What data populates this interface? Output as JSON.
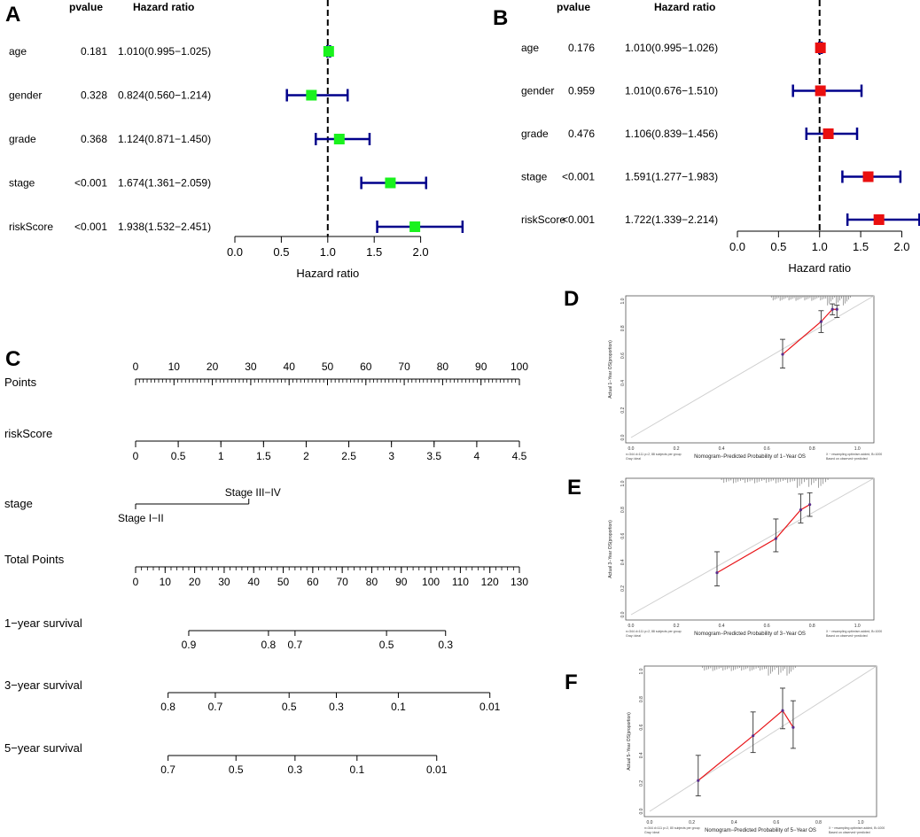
{
  "panel_labels": {
    "A": "A",
    "B": "B",
    "C": "C",
    "D": "D",
    "E": "E",
    "F": "F"
  },
  "colors": {
    "green": "#19f21d",
    "red": "#ea0f0f",
    "navy": "#00008b",
    "cal_line": "#e8161a",
    "ref_line": "#cfcfcf",
    "point": "#5a2d8c"
  },
  "chart_data": [
    {
      "id": "A",
      "type": "forest",
      "header_pvalue": "pvalue",
      "header_hr": "Hazard ratio",
      "xlabel": "Hazard ratio",
      "xlim": [
        0,
        2.5
      ],
      "ticks": [
        "0.0",
        "0.5",
        "1.0",
        "1.5",
        "2.0"
      ],
      "reference": 1.0,
      "rows": [
        {
          "name": "age",
          "pvalue": "0.181",
          "hr_text": "1.010(0.995−1.025)",
          "hr": 1.01,
          "low": 0.995,
          "high": 1.025
        },
        {
          "name": "gender",
          "pvalue": "0.328",
          "hr_text": "0.824(0.560−1.214)",
          "hr": 0.824,
          "low": 0.56,
          "high": 1.214
        },
        {
          "name": "grade",
          "pvalue": "0.368",
          "hr_text": "1.124(0.871−1.450)",
          "hr": 1.124,
          "low": 0.871,
          "high": 1.45
        },
        {
          "name": "stage",
          "pvalue": "<0.001",
          "hr_text": "1.674(1.361−2.059)",
          "hr": 1.674,
          "low": 1.361,
          "high": 2.059
        },
        {
          "name": "riskScore",
          "pvalue": "<0.001",
          "hr_text": "1.938(1.532−2.451)",
          "hr": 1.938,
          "low": 1.532,
          "high": 2.451
        }
      ]
    },
    {
      "id": "B",
      "type": "forest",
      "header_pvalue": "pvalue",
      "header_hr": "Hazard ratio",
      "xlabel": "Hazard ratio",
      "xlim": [
        0,
        2.2
      ],
      "ticks": [
        "0.0",
        "0.5",
        "1.0",
        "1.5",
        "2.0"
      ],
      "reference": 1.0,
      "rows": [
        {
          "name": "age",
          "pvalue": "0.176",
          "hr_text": "1.010(0.995−1.026)",
          "hr": 1.01,
          "low": 0.995,
          "high": 1.026
        },
        {
          "name": "gender",
          "pvalue": "0.959",
          "hr_text": "1.010(0.676−1.510)",
          "hr": 1.01,
          "low": 0.676,
          "high": 1.51
        },
        {
          "name": "grade",
          "pvalue": "0.476",
          "hr_text": "1.106(0.839−1.456)",
          "hr": 1.106,
          "low": 0.839,
          "high": 1.456
        },
        {
          "name": "stage",
          "pvalue": "<0.001",
          "hr_text": "1.591(1.277−1.983)",
          "hr": 1.591,
          "low": 1.277,
          "high": 1.983
        },
        {
          "name": "riskScore",
          "pvalue": "<0.001",
          "hr_text": "1.722(1.339−2.214)",
          "hr": 1.722,
          "low": 1.339,
          "high": 2.214
        }
      ]
    },
    {
      "id": "C",
      "type": "nomogram",
      "scales": [
        {
          "name": "Points",
          "min": 0,
          "max": 100,
          "labels": [
            0,
            10,
            20,
            30,
            40,
            50,
            60,
            70,
            80,
            90,
            100
          ],
          "label_pos": [
            0,
            10,
            20,
            30,
            40,
            50,
            60,
            70,
            80,
            90,
            100
          ],
          "minor": 1,
          "label_side": "top"
        },
        {
          "name": "riskScore",
          "min": 0,
          "max": 4.5,
          "labels": [
            "0",
            "0.5",
            "1",
            "1.5",
            "2",
            "2.5",
            "3",
            "3.5",
            "4",
            "4.5"
          ],
          "label_pos": [
            0,
            0.5,
            1,
            1.5,
            2,
            2.5,
            3,
            3.5,
            4,
            4.5
          ],
          "minor": 0.5,
          "label_side": "bottom"
        },
        {
          "name": "stage",
          "type": "categorical",
          "categories": [
            "Stage I−II",
            "Stage III−IV"
          ],
          "points": [
            0,
            29.5
          ]
        },
        {
          "name": "Total Points",
          "min": 0,
          "max": 130,
          "labels": [
            0,
            10,
            20,
            30,
            40,
            50,
            60,
            70,
            80,
            90,
            100,
            110,
            120,
            130
          ],
          "label_pos": [
            0,
            10,
            20,
            30,
            40,
            50,
            60,
            70,
            80,
            90,
            100,
            110,
            120,
            130
          ],
          "minor": 2,
          "label_side": "bottom"
        },
        {
          "name": "1−year survival",
          "type": "survival",
          "labels": [
            "0.9",
            "0.8",
            "0.7",
            "0.5",
            "0.3"
          ],
          "total_points": [
            18,
            45,
            54,
            85,
            105
          ]
        },
        {
          "name": "3−year survival",
          "type": "survival",
          "labels": [
            "0.8",
            "0.7",
            "0.5",
            "0.3",
            "0.1",
            "0.01"
          ],
          "total_points": [
            11,
            27,
            52,
            68,
            89,
            120
          ]
        },
        {
          "name": "5−year survival",
          "type": "survival",
          "labels": [
            "0.7",
            "0.5",
            "0.3",
            "0.1",
            "0.01"
          ],
          "total_points": [
            11,
            34,
            54,
            75,
            102
          ]
        }
      ]
    },
    {
      "id": "D",
      "type": "calibration",
      "xlabel": "Nomogram−Predicted Probability of 1−Year OS",
      "ylabel": "Actual 1−Year OS(proportion)",
      "xlim": [
        0,
        1.05
      ],
      "ylim": [
        0,
        1.0
      ],
      "xticks": [
        "0.0",
        "0.2",
        "0.4",
        "0.6",
        "0.8",
        "1.0"
      ],
      "yticks": [
        "0.0",
        "0.2",
        "0.4",
        "0.6",
        "0.8",
        "1.0"
      ],
      "note_left": "n=344 d=111 p=2, 88 subjects per group\nGray: ideal",
      "note_right": "X − resampling optimism added, B=1000\nBased on observed−predicted",
      "points": [
        {
          "x": 0.67,
          "y": 0.61,
          "low": 0.51,
          "high": 0.72
        },
        {
          "x": 0.84,
          "y": 0.85,
          "low": 0.77,
          "high": 0.93
        },
        {
          "x": 0.89,
          "y": 0.94,
          "low": 0.9,
          "high": 0.98
        },
        {
          "x": 0.91,
          "y": 0.94,
          "low": 0.88,
          "high": 0.97
        }
      ]
    },
    {
      "id": "E",
      "type": "calibration",
      "xlabel": "Nomogram−Predicted Probability of 3−Year OS",
      "ylabel": "Actual 3−Year OS(proportion)",
      "xlim": [
        0,
        1.05
      ],
      "ylim": [
        0,
        1.0
      ],
      "xticks": [
        "0.0",
        "0.2",
        "0.4",
        "0.6",
        "0.8",
        "1.0"
      ],
      "yticks": [
        "0.0",
        "0.2",
        "0.4",
        "0.6",
        "0.8",
        "1.0"
      ],
      "note_left": "n=344 d=111 p=2, 88 subjects per group\nGray: ideal",
      "note_right": "X − resampling optimism added, B=1000\nBased on observed−predicted",
      "points": [
        {
          "x": 0.38,
          "y": 0.32,
          "low": 0.22,
          "high": 0.48
        },
        {
          "x": 0.64,
          "y": 0.58,
          "low": 0.48,
          "high": 0.73
        },
        {
          "x": 0.75,
          "y": 0.8,
          "low": 0.7,
          "high": 0.92
        },
        {
          "x": 0.79,
          "y": 0.84,
          "low": 0.75,
          "high": 0.93
        }
      ]
    },
    {
      "id": "F",
      "type": "calibration",
      "xlabel": "Nomogram−Predicted Probability of 5−Year OS",
      "ylabel": "Actual 5−Year OS(proportion)",
      "xlim": [
        0,
        1.05
      ],
      "ylim": [
        0,
        1.0
      ],
      "xticks": [
        "0.0",
        "0.2",
        "0.4",
        "0.6",
        "0.8",
        "1.0"
      ],
      "yticks": [
        "0.0",
        "0.2",
        "0.4",
        "0.6",
        "0.8",
        "1.0"
      ],
      "note_left": "n=344 d=111 p=2, 80 subjects per group\nGray: ideal",
      "note_right": "X − resampling optimism added, B=1000\nBased on observed−predicted",
      "points": [
        {
          "x": 0.23,
          "y": 0.22,
          "low": 0.11,
          "high": 0.4
        },
        {
          "x": 0.49,
          "y": 0.54,
          "low": 0.42,
          "high": 0.71
        },
        {
          "x": 0.63,
          "y": 0.72,
          "low": 0.59,
          "high": 0.88
        },
        {
          "x": 0.68,
          "y": 0.6,
          "low": 0.45,
          "high": 0.79
        }
      ]
    }
  ]
}
